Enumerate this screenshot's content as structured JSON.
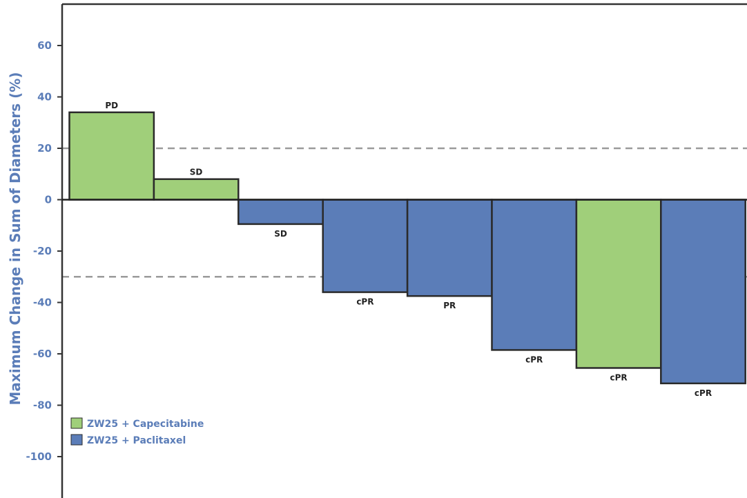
{
  "chart_data": {
    "type": "bar",
    "title": "",
    "xlabel": "",
    "ylabel": "Maximum Change in Sum of Diameters (%)",
    "ylim": [
      -115,
      78
    ],
    "yticks": [
      60,
      40,
      20,
      0,
      -20,
      -40,
      -60,
      -80,
      -100
    ],
    "reference_lines": [
      20,
      -30
    ],
    "grid": false,
    "legend_position": "bottom-left",
    "legend": [
      {
        "key": "cap",
        "name": "ZW25 + Capecitabine",
        "color": "#a0cf7a"
      },
      {
        "key": "pac",
        "name": "ZW25 + Paclitaxel",
        "color": "#5b7db8"
      }
    ],
    "bars": [
      {
        "value": 34,
        "label": "PD",
        "series": "cap"
      },
      {
        "value": 8,
        "label": "SD",
        "series": "cap"
      },
      {
        "value": -9.5,
        "label": "SD",
        "series": "pac"
      },
      {
        "value": -36,
        "label": "cPR",
        "series": "pac"
      },
      {
        "value": -37.5,
        "label": "PR",
        "series": "pac"
      },
      {
        "value": -58.5,
        "label": "cPR",
        "series": "pac"
      },
      {
        "value": -65.5,
        "label": "cPR",
        "series": "cap"
      },
      {
        "value": -71.5,
        "label": "cPR",
        "series": "pac"
      }
    ]
  },
  "colors": {
    "axis_text": "#5b7db8",
    "bar_outline": "#2a2a2a",
    "reference_line": "#9a9a9a"
  }
}
